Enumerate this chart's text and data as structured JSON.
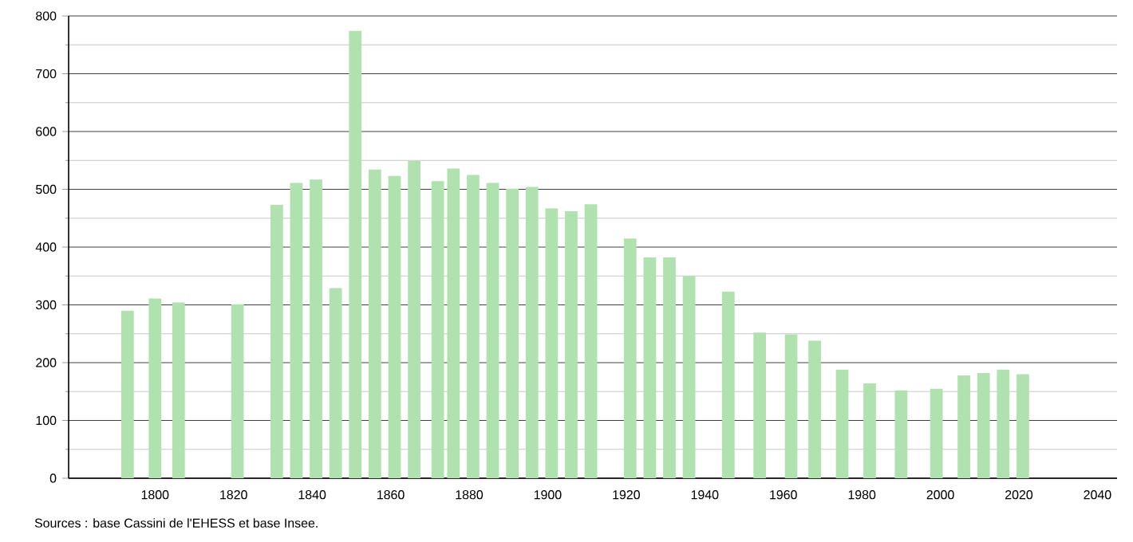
{
  "chart_data": {
    "type": "bar",
    "color": "#b0e2b0",
    "x": [
      1793,
      1800,
      1806,
      1821,
      1831,
      1836,
      1841,
      1846,
      1851,
      1856,
      1861,
      1866,
      1872,
      1876,
      1881,
      1886,
      1891,
      1896,
      1901,
      1906,
      1911,
      1921,
      1926,
      1931,
      1936,
      1946,
      1954,
      1962,
      1968,
      1975,
      1982,
      1990,
      1999,
      2006,
      2011,
      2016,
      2021
    ],
    "values": [
      290,
      311,
      304,
      301,
      473,
      511,
      517,
      329,
      774,
      534,
      523,
      549,
      514,
      536,
      525,
      511,
      501,
      504,
      467,
      462,
      474,
      415,
      382,
      382,
      350,
      323,
      252,
      249,
      238,
      188,
      164,
      152,
      155,
      178,
      182,
      188,
      180
    ],
    "xlim": [
      1778,
      2045
    ],
    "xticks": [
      1800,
      1820,
      1840,
      1860,
      1880,
      1900,
      1920,
      1940,
      1960,
      1980,
      2000,
      2020,
      2040
    ],
    "ylim": [
      0,
      800
    ],
    "yticks": [
      0,
      100,
      200,
      300,
      400,
      500,
      600,
      700,
      800
    ],
    "grid": "y",
    "annotations": [
      "Sources : base Cassini de l'EHESS et base Insee."
    ]
  }
}
